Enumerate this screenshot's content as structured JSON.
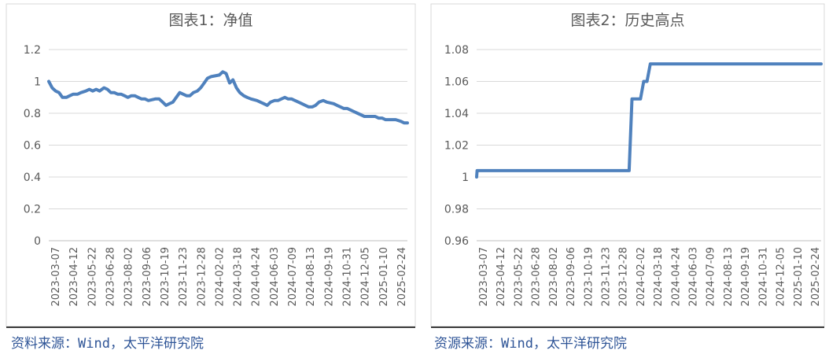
{
  "chart_data": [
    {
      "type": "line",
      "title": "图表1：净值",
      "xlabel": "",
      "ylabel": "",
      "ylim": [
        0,
        1.2
      ],
      "y_ticks": [
        "0",
        "0.2",
        "0.4",
        "0.6",
        "0.8",
        "1",
        "1.2"
      ],
      "grid": true,
      "legend": "none",
      "line_color": "#4f81bd",
      "x_ticks": [
        "2023-03-07",
        "2023-04-12",
        "2023-05-22",
        "2023-06-28",
        "2023-08-02",
        "2023-09-06",
        "2023-10-19",
        "2023-11-23",
        "2023-12-28",
        "2024-02-02",
        "2024-03-18",
        "2024-04-24",
        "2024-06-03",
        "2024-07-09",
        "2024-08-13",
        "2024-09-19",
        "2024-10-31",
        "2024-12-05",
        "2025-01-10",
        "2025-02-24"
      ],
      "x": [
        "2023-03-07",
        "2023-03-14",
        "2023-03-21",
        "2023-03-28",
        "2023-04-04",
        "2023-04-12",
        "2023-04-19",
        "2023-04-26",
        "2023-05-05",
        "2023-05-12",
        "2023-05-22",
        "2023-05-29",
        "2023-06-05",
        "2023-06-12",
        "2023-06-19",
        "2023-06-28",
        "2023-07-05",
        "2023-07-12",
        "2023-07-19",
        "2023-07-26",
        "2023-08-02",
        "2023-08-09",
        "2023-08-16",
        "2023-08-23",
        "2023-08-30",
        "2023-09-06",
        "2023-09-13",
        "2023-09-20",
        "2023-09-27",
        "2023-10-11",
        "2023-10-19",
        "2023-10-26",
        "2023-11-02",
        "2023-11-09",
        "2023-11-16",
        "2023-11-23",
        "2023-11-30",
        "2023-12-07",
        "2023-12-14",
        "2023-12-21",
        "2023-12-28",
        "2024-01-05",
        "2024-01-12",
        "2024-01-19",
        "2024-01-26",
        "2024-02-02",
        "2024-02-19",
        "2024-02-26",
        "2024-03-04",
        "2024-03-11",
        "2024-03-18",
        "2024-03-25",
        "2024-04-01",
        "2024-04-09",
        "2024-04-16",
        "2024-04-24",
        "2024-05-06",
        "2024-05-13",
        "2024-05-20",
        "2024-05-27",
        "2024-06-03",
        "2024-06-11",
        "2024-06-18",
        "2024-06-25",
        "2024-07-02",
        "2024-07-09",
        "2024-07-16",
        "2024-07-23",
        "2024-07-30",
        "2024-08-06",
        "2024-08-13",
        "2024-08-20",
        "2024-08-27",
        "2024-09-03",
        "2024-09-10",
        "2024-09-19",
        "2024-09-26",
        "2024-10-10",
        "2024-10-17",
        "2024-10-24",
        "2024-10-31",
        "2024-11-07",
        "2024-11-14",
        "2024-11-21",
        "2024-11-28",
        "2024-12-05",
        "2024-12-12",
        "2024-12-19",
        "2024-12-26",
        "2025-01-03",
        "2025-01-10",
        "2025-01-17",
        "2025-01-24",
        "2025-02-07",
        "2025-02-14",
        "2025-02-24",
        "2025-03-03",
        "2025-03-10"
      ],
      "values": [
        1.0,
        0.96,
        0.94,
        0.93,
        0.9,
        0.9,
        0.91,
        0.92,
        0.92,
        0.93,
        0.94,
        0.95,
        0.94,
        0.95,
        0.94,
        0.96,
        0.95,
        0.93,
        0.93,
        0.92,
        0.92,
        0.91,
        0.9,
        0.91,
        0.91,
        0.9,
        0.89,
        0.89,
        0.88,
        0.89,
        0.89,
        0.87,
        0.85,
        0.86,
        0.87,
        0.9,
        0.93,
        0.92,
        0.91,
        0.91,
        0.93,
        0.94,
        0.96,
        0.99,
        1.02,
        1.03,
        1.04,
        1.06,
        1.05,
        0.99,
        1.01,
        0.96,
        0.93,
        0.91,
        0.9,
        0.89,
        0.88,
        0.87,
        0.86,
        0.85,
        0.87,
        0.88,
        0.88,
        0.89,
        0.9,
        0.89,
        0.89,
        0.88,
        0.87,
        0.86,
        0.85,
        0.84,
        0.84,
        0.85,
        0.87,
        0.88,
        0.87,
        0.86,
        0.85,
        0.84,
        0.83,
        0.83,
        0.82,
        0.81,
        0.8,
        0.79,
        0.78,
        0.78,
        0.78,
        0.78,
        0.77,
        0.77,
        0.76,
        0.76,
        0.76,
        0.75,
        0.74,
        0.74
      ]
    },
    {
      "type": "line",
      "title": "图表2：历史高点",
      "xlabel": "",
      "ylabel": "",
      "ylim": [
        0.96,
        1.08
      ],
      "y_ticks": [
        "0.96",
        "0.98",
        "1",
        "1.02",
        "1.04",
        "1.06",
        "1.08"
      ],
      "grid": true,
      "legend": "none",
      "line_color": "#4f81bd",
      "x_ticks": [
        "2023-03-07",
        "2023-04-12",
        "2023-05-22",
        "2023-06-28",
        "2023-08-02",
        "2023-09-06",
        "2023-10-19",
        "2023-11-23",
        "2023-12-28",
        "2024-02-02",
        "2024-03-18",
        "2024-04-24",
        "2024-06-03",
        "2024-07-09",
        "2024-08-13",
        "2024-09-19",
        "2024-10-31",
        "2024-12-05",
        "2025-01-10",
        "2025-02-24"
      ],
      "x": [
        "2023-03-07",
        "2023-03-08",
        "2024-01-26",
        "2024-02-01",
        "2024-02-19",
        "2024-02-26",
        "2024-03-04",
        "2024-03-11",
        "2025-03-10"
      ],
      "values": [
        1.0,
        1.004,
        1.004,
        1.049,
        1.049,
        1.06,
        1.06,
        1.071,
        1.071
      ]
    }
  ],
  "source_left": "资料来源：Wind，太平洋研究院",
  "source_right": "资源来源：Wind，太平洋研究院"
}
